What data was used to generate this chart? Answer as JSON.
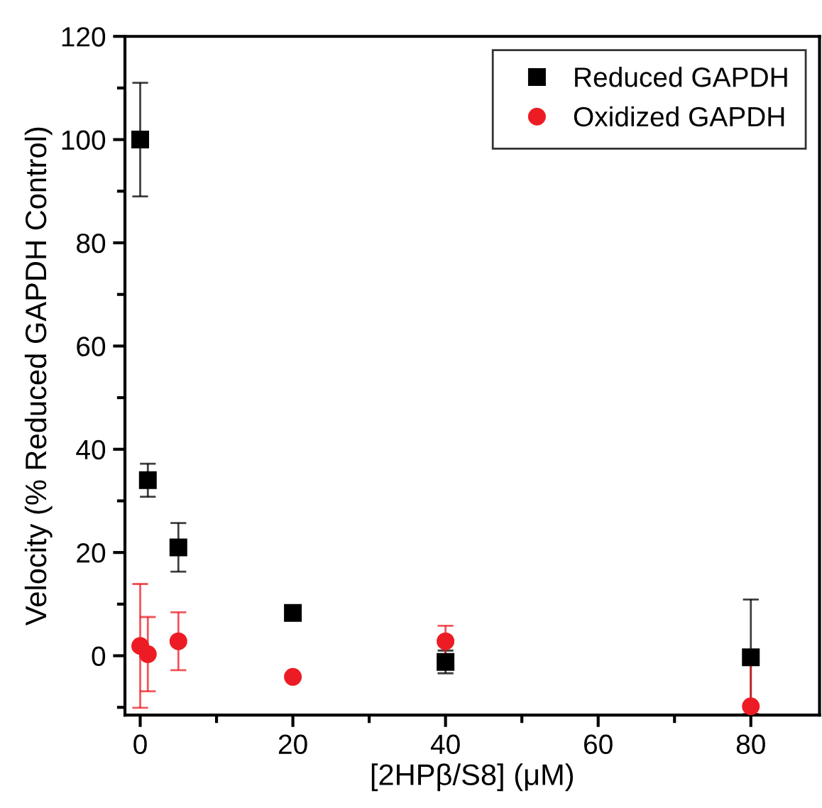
{
  "chart_data": {
    "type": "scatter",
    "xlabel": "[2HPβ/S8] (μM)",
    "ylabel": "Velocity (% Reduced GAPDH Control)",
    "xlim": [
      -2,
      89
    ],
    "ylim": [
      -11.5,
      120
    ],
    "xticks": [
      0,
      20,
      40,
      60,
      80
    ],
    "yticks": [
      0,
      20,
      40,
      60,
      80,
      100,
      120
    ],
    "legend": "top right",
    "grid": false,
    "series": [
      {
        "name": "Reduced GAPDH",
        "color": "#000000",
        "marker": "square",
        "x": [
          0,
          1,
          5,
          20,
          40,
          80
        ],
        "values": [
          100,
          34,
          21,
          8.3,
          -1.2,
          -0.3
        ],
        "errors": [
          11,
          3.2,
          4.7,
          null,
          2.2,
          [
            -11.3,
            10.9
          ]
        ]
      },
      {
        "name": "Oxidized GAPDH",
        "color": "#ed1c24",
        "marker": "circle",
        "x": [
          0,
          1,
          5,
          20,
          40,
          80
        ],
        "values": [
          1.9,
          0.3,
          2.8,
          -4.1,
          2.8,
          -9.8
        ],
        "errors": [
          12,
          7.2,
          5.6,
          null,
          3,
          [
            -11.3,
            1.1
          ]
        ]
      }
    ]
  }
}
